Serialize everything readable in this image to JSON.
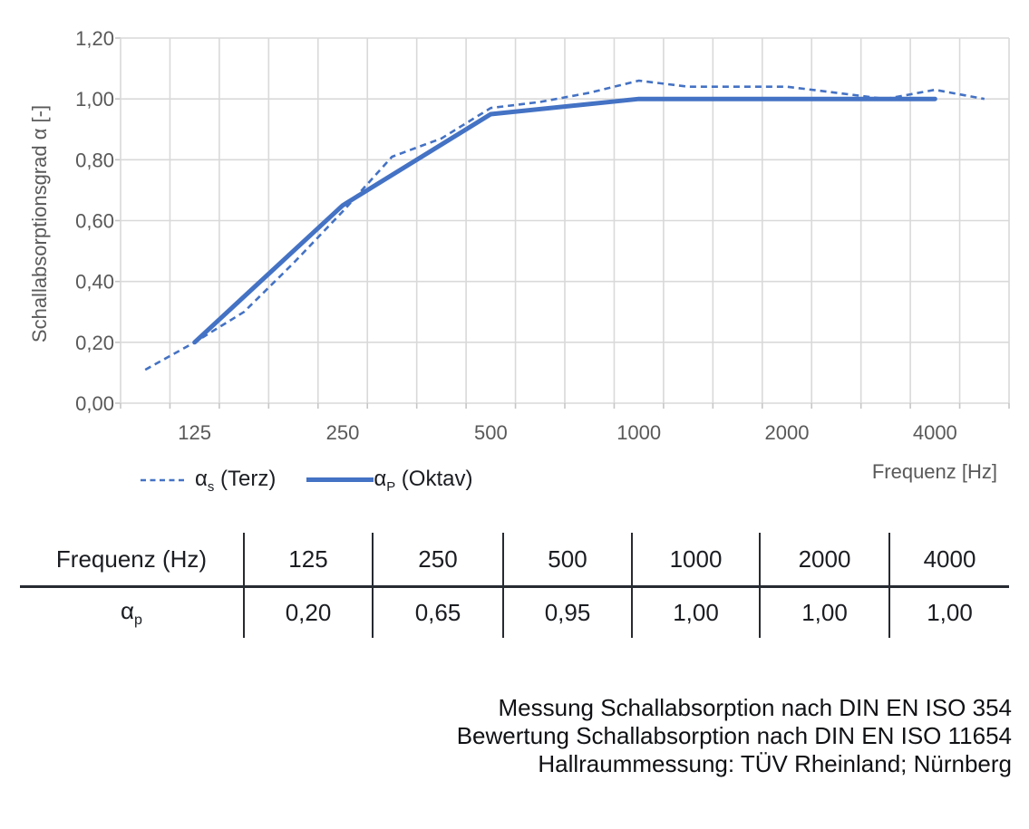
{
  "colors": {
    "line_blue": "#4472C4",
    "gridline": "#D9D9D9",
    "tick": "#C6C6C6",
    "axis_text": "#595959",
    "text_dark": "#1B1D22"
  },
  "chart": {
    "legend": [
      {
        "alpha": "α",
        "sub": "s",
        "rest": " (Terz)"
      },
      {
        "alpha": "α",
        "sub": "P",
        "rest": " (Oktav)"
      }
    ]
  },
  "chart_data": {
    "type": "line",
    "title": "",
    "ylabel": "Schallabsorptionsgrad α [-]",
    "xlabel": "Frequenz [Hz]",
    "ylim": [
      0,
      1.2
    ],
    "y_tick_step": 0.2,
    "y_tick_labels": [
      "1,20",
      "1,00",
      "0,80",
      "0,60",
      "0,40",
      "0,20",
      "0,00"
    ],
    "categories": [
      "100",
      "125",
      "160",
      "200",
      "250",
      "315",
      "400",
      "500",
      "630",
      "800",
      "1000",
      "1250",
      "1600",
      "2000",
      "2500",
      "3150",
      "4000",
      "5000"
    ],
    "x_axis_labels": [
      "125",
      "250",
      "500",
      "1000",
      "2000",
      "4000"
    ],
    "grid": true,
    "legend_position": "bottom-left",
    "series": [
      {
        "name": "αs (Terz)",
        "style": "dashed",
        "values": [
          0.11,
          0.2,
          0.3,
          0.46,
          0.63,
          0.81,
          0.87,
          0.97,
          0.99,
          1.02,
          1.06,
          1.04,
          1.04,
          1.04,
          1.02,
          1.0,
          1.03,
          1.0
        ]
      },
      {
        "name": "αP (Oktav)",
        "style": "solid",
        "categories": [
          "125",
          "250",
          "500",
          "1000",
          "2000",
          "4000"
        ],
        "values": [
          0.2,
          0.65,
          0.95,
          1.0,
          1.0,
          1.0
        ]
      }
    ]
  },
  "table": {
    "headers": [
      "Frequenz (Hz)",
      "125",
      "250",
      "500",
      "1000",
      "2000",
      "4000"
    ],
    "row_label": {
      "alpha": "α",
      "sub": "p"
    },
    "values": [
      "0,20",
      "0,65",
      "0,95",
      "1,00",
      "1,00",
      "1,00"
    ]
  },
  "caption": {
    "lines": [
      "Messung Schallabsorption nach DIN EN ISO 354",
      "Bewertung Schallabsorption nach DIN EN ISO 11654",
      "Hallraummessung: TÜV Rheinland; Nürnberg"
    ]
  }
}
